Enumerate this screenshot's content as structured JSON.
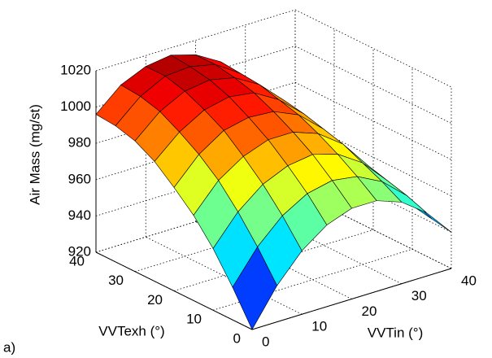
{
  "chart_data": {
    "type": "surface",
    "x_label": "VVTin (°)",
    "y_label": "VVTexh (°)",
    "z_label": "Air Mass (mg/st)",
    "annotation": "a)",
    "x": [
      0,
      5,
      10,
      15,
      20,
      25,
      30,
      35,
      40
    ],
    "y": [
      0,
      5,
      10,
      15,
      20,
      25,
      30,
      35,
      40
    ],
    "z": [
      [
        920,
        940,
        955,
        965,
        970,
        970,
        965,
        955,
        940
      ],
      [
        938,
        956,
        969,
        977,
        980,
        978,
        971,
        959,
        942
      ],
      [
        954,
        970,
        981,
        987,
        989,
        985,
        976,
        962,
        944
      ],
      [
        967,
        982,
        991,
        996,
        996,
        991,
        981,
        965,
        945
      ],
      [
        977,
        991,
        1000,
        1003,
        1002,
        996,
        984,
        968,
        946
      ],
      [
        986,
        998,
        1006,
        1009,
        1007,
        999,
        987,
        970,
        947
      ],
      [
        992,
        1004,
        1011,
        1013,
        1010,
        1002,
        989,
        971,
        948
      ],
      [
        995,
        1007,
        1014,
        1015,
        1012,
        1003,
        990,
        972,
        948
      ],
      [
        996,
        1008,
        1014,
        1016,
        1012,
        1004,
        990,
        972,
        948
      ]
    ],
    "xlim": [
      0,
      40
    ],
    "ylim": [
      0,
      40
    ],
    "zlim": [
      920,
      1020
    ],
    "xticks": [
      0,
      10,
      20,
      30,
      40
    ],
    "yticks": [
      0,
      10,
      20,
      30,
      40
    ],
    "zticks": [
      920,
      940,
      960,
      980,
      1000,
      1020
    ],
    "colormap": "jet",
    "grid": true
  }
}
